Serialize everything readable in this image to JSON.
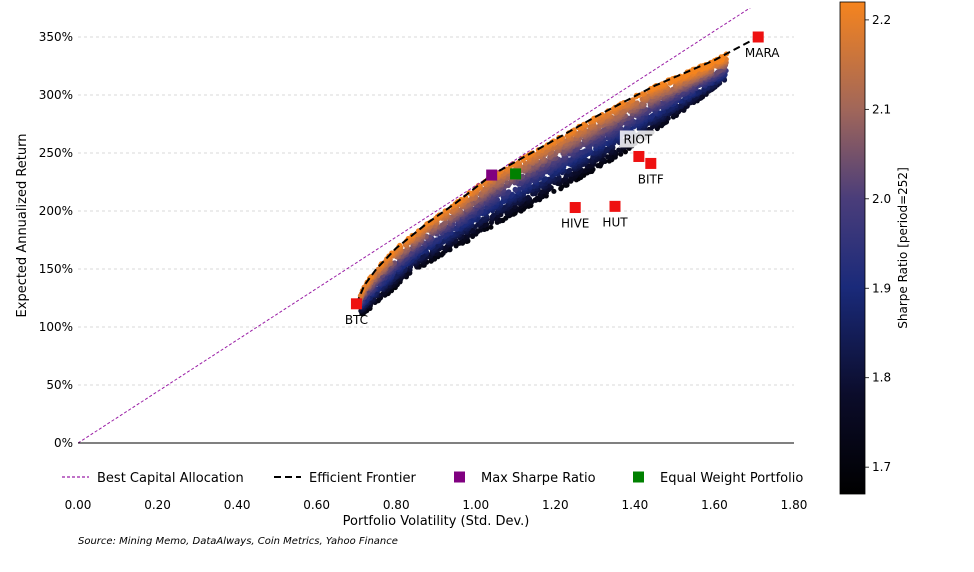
{
  "source_note": "Source: Mining Memo, DataAlways, Coin Metrics, Yahoo Finance",
  "chart_data": {
    "type": "scatter",
    "xlabel": "Portfolio Volatility (Std. Dev.)",
    "ylabel": "Expected Annualized Return",
    "xlim": [
      0,
      1.8
    ],
    "ylim": [
      0,
      3.75
    ],
    "x_ticks": [
      "0.00",
      "0.20",
      "0.40",
      "0.60",
      "0.80",
      "1.00",
      "1.20",
      "1.40",
      "1.60",
      "1.80"
    ],
    "y_ticks": [
      "0%",
      "50%",
      "100%",
      "150%",
      "200%",
      "250%",
      "300%",
      "350%"
    ],
    "y_tick_values": [
      0,
      0.5,
      1.0,
      1.5,
      2.0,
      2.5,
      3.0,
      3.5
    ],
    "grid": "horizontal dashed",
    "legend_placement": "bottom",
    "colorbar": {
      "label": "Sharpe Ratio [period=252]",
      "ticks": [
        "1.7",
        "1.8",
        "1.9",
        "2.0",
        "2.1",
        "2.2"
      ],
      "tick_values": [
        1.7,
        1.8,
        1.9,
        2.0,
        2.1,
        2.2
      ],
      "range": [
        1.67,
        2.22
      ]
    },
    "assets": [
      {
        "name": "BTC",
        "x": 0.7,
        "y": 1.2
      },
      {
        "name": "HIVE",
        "x": 1.25,
        "y": 2.03
      },
      {
        "name": "HUT",
        "x": 1.35,
        "y": 2.04
      },
      {
        "name": "RIOT",
        "x": 1.41,
        "y": 2.47
      },
      {
        "name": "BITF",
        "x": 1.44,
        "y": 2.41
      },
      {
        "name": "MARA",
        "x": 1.71,
        "y": 3.5
      }
    ],
    "max_sharpe": {
      "x": 1.04,
      "y": 2.31
    },
    "equal_weight": {
      "x": 1.1,
      "y": 2.32
    },
    "best_capital_allocation": {
      "slope": 2.22
    },
    "efficient_frontier": [
      [
        0.7,
        1.2
      ],
      [
        0.72,
        1.36
      ],
      [
        0.75,
        1.5
      ],
      [
        0.8,
        1.68
      ],
      [
        0.88,
        1.9
      ],
      [
        0.95,
        2.07
      ],
      [
        1.04,
        2.31
      ],
      [
        1.15,
        2.52
      ],
      [
        1.3,
        2.81
      ],
      [
        1.45,
        3.08
      ],
      [
        1.6,
        3.3
      ],
      [
        1.71,
        3.5
      ]
    ],
    "legend": [
      {
        "label": "Best Capital Allocation",
        "marker": "dotted-line",
        "color": "#9b1fa6"
      },
      {
        "label": "Efficient Frontier",
        "marker": "dashed-line",
        "color": "#000000"
      },
      {
        "label": "Max Sharpe Ratio",
        "marker": "square",
        "color": "#800080"
      },
      {
        "label": "Equal Weight Portfolio",
        "marker": "square",
        "color": "#008000"
      }
    ],
    "colors": {
      "asset_marker": "#ee1111",
      "max_sharpe": "#800080",
      "equal_weight": "#008000",
      "cml": "#9b1fa6",
      "frontier": "#000000",
      "grid": "#cccccc"
    }
  }
}
